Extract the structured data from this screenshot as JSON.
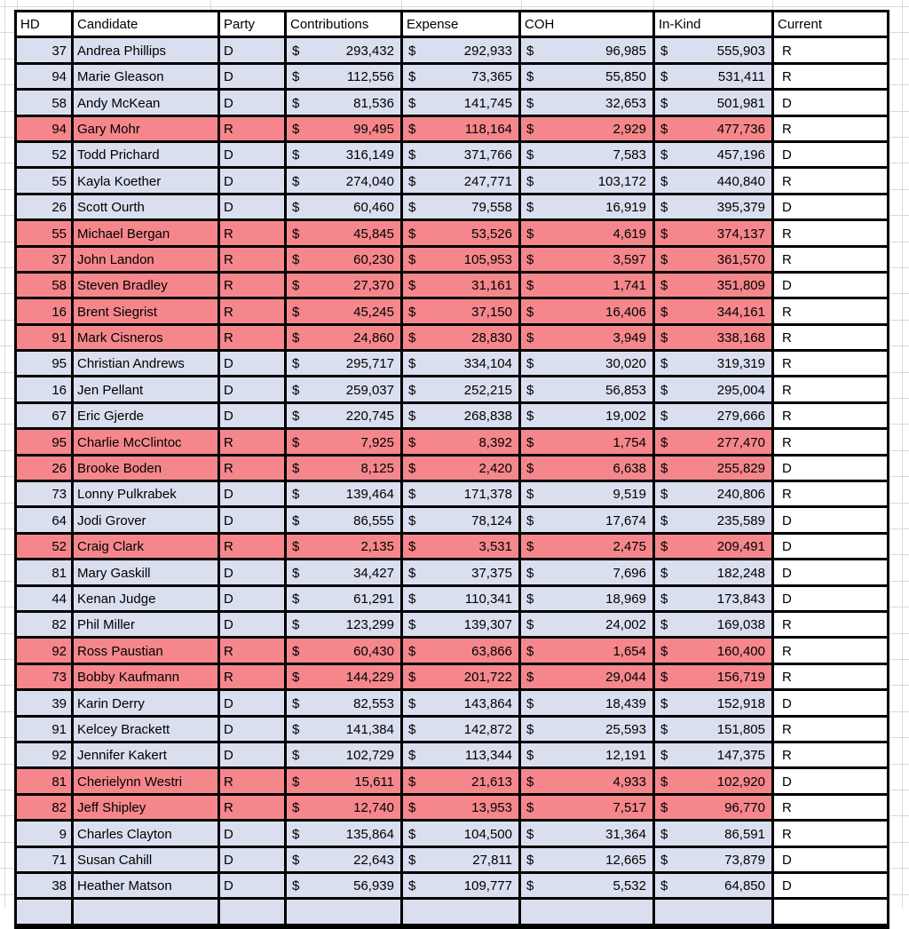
{
  "sheet": {
    "currency_symbol": "$"
  },
  "colors": {
    "dem_fill": "#DADFF0",
    "rep_fill": "#F5878C",
    "header_fill": "#FFFFFF",
    "border": "#000000",
    "gridline": "#D9D9D9",
    "text": "#000000"
  },
  "table": {
    "headers": [
      "HD",
      "Candidate",
      "Party",
      "Contributions",
      "Expense",
      "COH",
      "In-Kind",
      "Current"
    ],
    "rows": [
      {
        "hd": "37",
        "candidate": "Andrea Phillips",
        "party": "D",
        "contributions": "293,432",
        "expense": "292,933",
        "coh": "96,985",
        "inkind": "555,903",
        "current": "R"
      },
      {
        "hd": "94",
        "candidate": "Marie Gleason",
        "party": "D",
        "contributions": "112,556",
        "expense": "73,365",
        "coh": "55,850",
        "inkind": "531,411",
        "current": "R"
      },
      {
        "hd": "58",
        "candidate": "Andy McKean",
        "party": "D",
        "contributions": "81,536",
        "expense": "141,745",
        "coh": "32,653",
        "inkind": "501,981",
        "current": "D"
      },
      {
        "hd": "94",
        "candidate": "Gary Mohr",
        "party": "R",
        "contributions": "99,495",
        "expense": "118,164",
        "coh": "2,929",
        "inkind": "477,736",
        "current": "R"
      },
      {
        "hd": "52",
        "candidate": "Todd Prichard",
        "party": "D",
        "contributions": "316,149",
        "expense": "371,766",
        "coh": "7,583",
        "inkind": "457,196",
        "current": "D"
      },
      {
        "hd": "55",
        "candidate": "Kayla Koether",
        "party": "D",
        "contributions": "274,040",
        "expense": "247,771",
        "coh": "103,172",
        "inkind": "440,840",
        "current": "R"
      },
      {
        "hd": "26",
        "candidate": "Scott Ourth",
        "party": "D",
        "contributions": "60,460",
        "expense": "79,558",
        "coh": "16,919",
        "inkind": "395,379",
        "current": "D"
      },
      {
        "hd": "55",
        "candidate": "Michael Bergan",
        "party": "R",
        "contributions": "45,845",
        "expense": "53,526",
        "coh": "4,619",
        "inkind": "374,137",
        "current": "R"
      },
      {
        "hd": "37",
        "candidate": "John Landon",
        "party": "R",
        "contributions": "60,230",
        "expense": "105,953",
        "coh": "3,597",
        "inkind": "361,570",
        "current": "R"
      },
      {
        "hd": "58",
        "candidate": "Steven Bradley",
        "party": "R",
        "contributions": "27,370",
        "expense": "31,161",
        "coh": "1,741",
        "inkind": "351,809",
        "current": "D"
      },
      {
        "hd": "16",
        "candidate": "Brent Siegrist",
        "party": "R",
        "contributions": "45,245",
        "expense": "37,150",
        "coh": "16,406",
        "inkind": "344,161",
        "current": "R"
      },
      {
        "hd": "91",
        "candidate": "Mark Cisneros",
        "party": "R",
        "contributions": "24,860",
        "expense": "28,830",
        "coh": "3,949",
        "inkind": "338,168",
        "current": "R"
      },
      {
        "hd": "95",
        "candidate": "Christian Andrews",
        "party": "D",
        "contributions": "295,717",
        "expense": "334,104",
        "coh": "30,020",
        "inkind": "319,319",
        "current": "R"
      },
      {
        "hd": "16",
        "candidate": "Jen Pellant",
        "party": "D",
        "contributions": "259,037",
        "expense": "252,215",
        "coh": "56,853",
        "inkind": "295,004",
        "current": "R"
      },
      {
        "hd": "67",
        "candidate": "Eric Gjerde",
        "party": "D",
        "contributions": "220,745",
        "expense": "268,838",
        "coh": "19,002",
        "inkind": "279,666",
        "current": "R"
      },
      {
        "hd": "95",
        "candidate": "Charlie McClintoc",
        "party": "R",
        "contributions": "7,925",
        "expense": "8,392",
        "coh": "1,754",
        "inkind": "277,470",
        "current": "R"
      },
      {
        "hd": "26",
        "candidate": "Brooke Boden",
        "party": "R",
        "contributions": "8,125",
        "expense": "2,420",
        "coh": "6,638",
        "inkind": "255,829",
        "current": "D"
      },
      {
        "hd": "73",
        "candidate": "Lonny Pulkrabek",
        "party": "D",
        "contributions": "139,464",
        "expense": "171,378",
        "coh": "9,519",
        "inkind": "240,806",
        "current": "R"
      },
      {
        "hd": "64",
        "candidate": "Jodi Grover",
        "party": "D",
        "contributions": "86,555",
        "expense": "78,124",
        "coh": "17,674",
        "inkind": "235,589",
        "current": "D"
      },
      {
        "hd": "52",
        "candidate": "Craig Clark",
        "party": "R",
        "contributions": "2,135",
        "expense": "3,531",
        "coh": "2,475",
        "inkind": "209,491",
        "current": "D"
      },
      {
        "hd": "81",
        "candidate": "Mary Gaskill",
        "party": "D",
        "contributions": "34,427",
        "expense": "37,375",
        "coh": "7,696",
        "inkind": "182,248",
        "current": "D"
      },
      {
        "hd": "44",
        "candidate": "Kenan Judge",
        "party": "D",
        "contributions": "61,291",
        "expense": "110,341",
        "coh": "18,969",
        "inkind": "173,843",
        "current": "D"
      },
      {
        "hd": "82",
        "candidate": "Phil Miller",
        "party": "D",
        "contributions": "123,299",
        "expense": "139,307",
        "coh": "24,002",
        "inkind": "169,038",
        "current": "R"
      },
      {
        "hd": "92",
        "candidate": "Ross Paustian",
        "party": "R",
        "contributions": "60,430",
        "expense": "63,866",
        "coh": "1,654",
        "inkind": "160,400",
        "current": "R"
      },
      {
        "hd": "73",
        "candidate": "Bobby Kaufmann",
        "party": "R",
        "contributions": "144,229",
        "expense": "201,722",
        "coh": "29,044",
        "inkind": "156,719",
        "current": "R"
      },
      {
        "hd": "39",
        "candidate": "Karin Derry",
        "party": "D",
        "contributions": "82,553",
        "expense": "143,864",
        "coh": "18,439",
        "inkind": "152,918",
        "current": "D"
      },
      {
        "hd": "91",
        "candidate": "Kelcey Brackett",
        "party": "D",
        "contributions": "141,384",
        "expense": "142,872",
        "coh": "25,593",
        "inkind": "151,805",
        "current": "R"
      },
      {
        "hd": "92",
        "candidate": "Jennifer Kakert",
        "party": "D",
        "contributions": "102,729",
        "expense": "113,344",
        "coh": "12,191",
        "inkind": "147,375",
        "current": "R"
      },
      {
        "hd": "81",
        "candidate": "Cherielynn Westri",
        "party": "R",
        "contributions": "15,611",
        "expense": "21,613",
        "coh": "4,933",
        "inkind": "102,920",
        "current": "D"
      },
      {
        "hd": "82",
        "candidate": "Jeff Shipley",
        "party": "R",
        "contributions": "12,740",
        "expense": "13,953",
        "coh": "7,517",
        "inkind": "96,770",
        "current": "R"
      },
      {
        "hd": "9",
        "candidate": "Charles Clayton",
        "party": "D",
        "contributions": "135,864",
        "expense": "104,500",
        "coh": "31,364",
        "inkind": "86,591",
        "current": "R"
      },
      {
        "hd": "71",
        "candidate": "Susan Cahill",
        "party": "D",
        "contributions": "22,643",
        "expense": "27,811",
        "coh": "12,665",
        "inkind": "73,879",
        "current": "D"
      },
      {
        "hd": "38",
        "candidate": "Heather Matson",
        "party": "D",
        "contributions": "56,939",
        "expense": "109,777",
        "coh": "5,532",
        "inkind": "64,850",
        "current": "D"
      }
    ],
    "partial_row": {
      "hd": "",
      "candidate": "",
      "party": "",
      "contributions": "",
      "expense": "",
      "coh": "",
      "inkind": "",
      "current": "",
      "party_fill": "D"
    }
  }
}
